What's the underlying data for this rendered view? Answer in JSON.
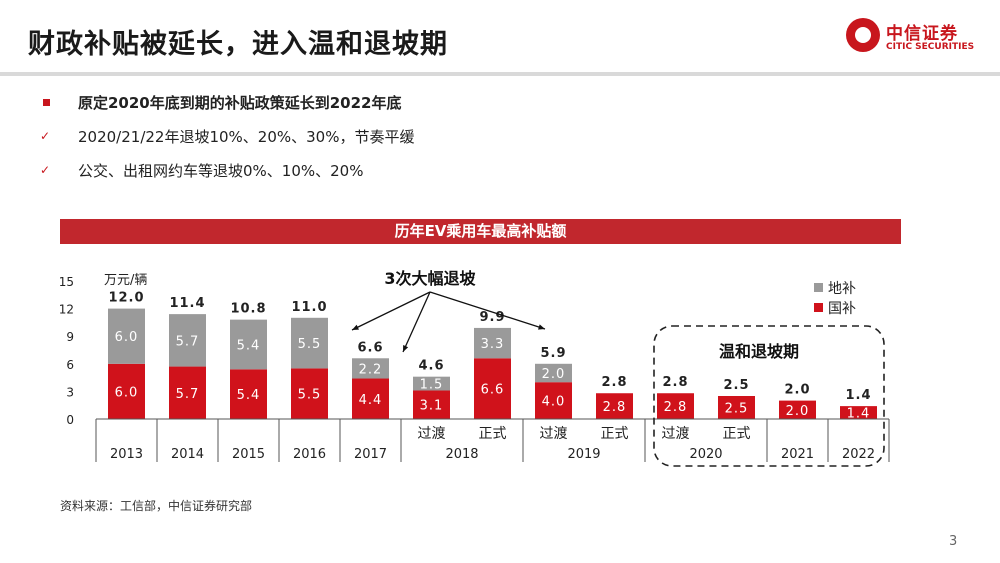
{
  "header": {
    "title": "财政补贴被延长，进入温和退坡期"
  },
  "logo": {
    "cn": "中信证券",
    "en": "CITIC SECURITIES",
    "color": "#c8161d"
  },
  "bullets": [
    {
      "marker": "square",
      "text": "原定2020年底到期的补贴政策延长到2022年底",
      "bold": true
    },
    {
      "marker": "check",
      "text": "2020/21/22年退坡10%、20%、30%，节奏平缓",
      "bold": false
    },
    {
      "marker": "check",
      "text": "公交、出租网约车等退坡0%、10%、20%",
      "bold": false
    }
  ],
  "chart_banner": "历年EV乘用车最高补贴额",
  "chart_data": {
    "type": "bar",
    "stacked": true,
    "ylabel": "万元/辆",
    "ylim": [
      0,
      15
    ],
    "yticks": [
      "0",
      "3",
      "6",
      "9",
      "12",
      "15"
    ],
    "categories": [
      "2013",
      "2014",
      "2015",
      "2016",
      "2017",
      "2018 过渡",
      "2018 正式",
      "2019 过渡",
      "2019 正式",
      "2020 过渡",
      "2020 正式",
      "2021",
      "2022"
    ],
    "sub_labels": [
      "",
      "",
      "",
      "",
      "",
      "过渡",
      "正式",
      "过渡",
      "正式",
      "过渡",
      "正式",
      "",
      ""
    ],
    "year_labels": [
      {
        "label": "2013",
        "span": 1
      },
      {
        "label": "2014",
        "span": 1
      },
      {
        "label": "2015",
        "span": 1
      },
      {
        "label": "2016",
        "span": 1
      },
      {
        "label": "2017",
        "span": 1
      },
      {
        "label": "2018",
        "span": 2
      },
      {
        "label": "2019",
        "span": 2
      },
      {
        "label": "2020",
        "span": 2
      },
      {
        "label": "2021",
        "span": 1
      },
      {
        "label": "2022",
        "span": 1
      }
    ],
    "series": [
      {
        "name": "国补",
        "color": "#d0121b",
        "values": [
          6.0,
          5.7,
          5.4,
          5.5,
          4.4,
          3.1,
          6.6,
          4.0,
          2.8,
          2.8,
          2.5,
          2.0,
          1.4
        ],
        "labels": [
          "6.0",
          "5.7",
          "5.4",
          "5.5",
          "4.4",
          "3.1",
          "6.6",
          "4.0",
          "2.8",
          "2.8",
          "2.5",
          "2.0",
          "1.4"
        ]
      },
      {
        "name": "地补",
        "color": "#9a9a9a",
        "values": [
          6.0,
          5.7,
          5.4,
          5.5,
          2.2,
          1.5,
          3.3,
          2.0,
          0,
          0,
          0,
          0,
          0
        ],
        "labels": [
          "6.0",
          "5.7",
          "5.4",
          "5.5",
          "2.2",
          "1.5",
          "3.3",
          "2.0",
          "",
          "",
          "",
          "",
          ""
        ]
      }
    ],
    "totals": [
      "12.0",
      "11.4",
      "10.8",
      "11.0",
      "6.6",
      "4.6",
      "9.9",
      "5.9",
      "2.8",
      "2.8",
      "2.5",
      "2.0",
      "1.4"
    ],
    "legend": [
      "地补",
      "国补"
    ],
    "legend_position": "top-right",
    "annotations": {
      "cut_label": "3次大幅退坡",
      "mild_label": "温和退坡期"
    }
  },
  "source": "资料来源：工信部，中信证券研究部",
  "page_number": "3"
}
